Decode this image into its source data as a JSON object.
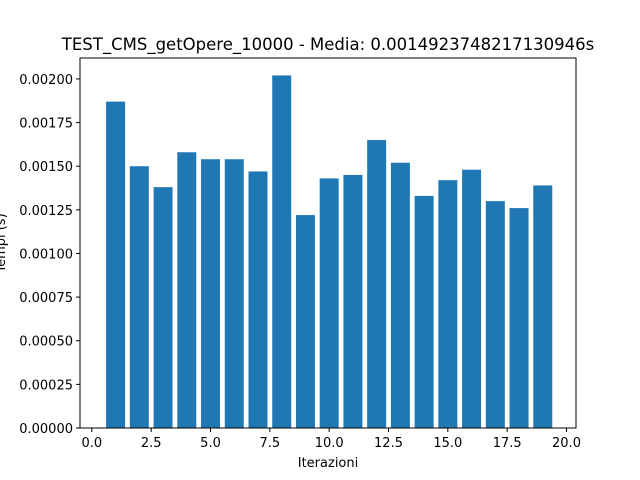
{
  "chart_data": {
    "type": "bar",
    "title": "TEST_CMS_getOpere_10000 - Media: 0.0014923748217130946s",
    "xlabel": "Iterazioni",
    "ylabel": "Tempi (s)",
    "x": [
      1,
      2,
      3,
      4,
      5,
      6,
      7,
      8,
      9,
      10,
      11,
      12,
      13,
      14,
      15,
      16,
      17,
      18,
      19
    ],
    "values": [
      0.00187,
      0.0015,
      0.00138,
      0.00158,
      0.00154,
      0.00154,
      0.00147,
      0.00202,
      0.00122,
      0.00143,
      0.00145,
      0.00165,
      0.00152,
      0.00133,
      0.00142,
      0.00148,
      0.0013,
      0.00126,
      0.00139
    ],
    "xlim": [
      -0.5,
      20.4
    ],
    "ylim": [
      0,
      0.00212
    ],
    "xticks": [
      0,
      2.5,
      5,
      7.5,
      10,
      12.5,
      15,
      17.5,
      20
    ],
    "xtick_labels": [
      "0.0",
      "2.5",
      "5.0",
      "7.5",
      "10.0",
      "12.5",
      "15.0",
      "17.5",
      "20.0"
    ],
    "yticks": [
      0,
      0.00025,
      0.0005,
      0.00075,
      0.001,
      0.00125,
      0.0015,
      0.00175,
      0.002
    ],
    "ytick_labels": [
      "0.00000",
      "0.00025",
      "0.00050",
      "0.00075",
      "0.00100",
      "0.00125",
      "0.00150",
      "0.00175",
      "0.00200"
    ],
    "bar_color": "#1f77b4",
    "grid": false,
    "legend": false
  }
}
